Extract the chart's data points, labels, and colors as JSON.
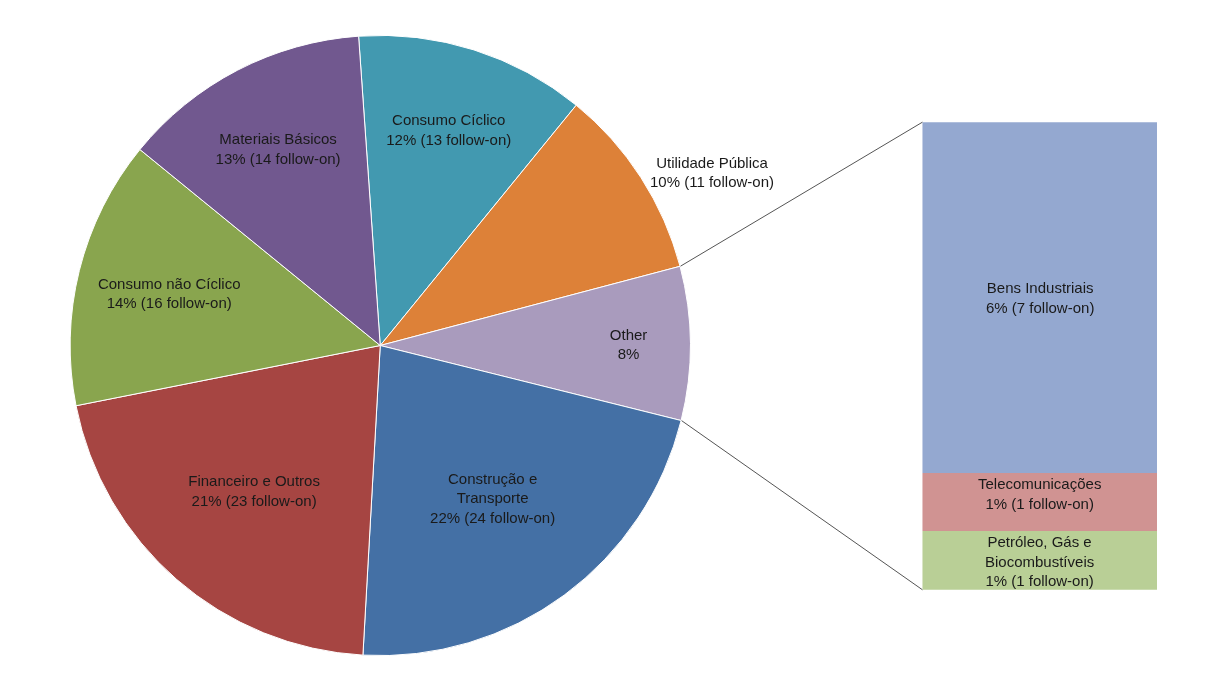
{
  "chart_data": [
    {
      "type": "pie",
      "categories": [
        "Consumo Cíclico",
        "Utilidade Pública",
        "Other",
        "Construção e Transporte",
        "Financeiro e Outros",
        "Consumo não Cíclico",
        "Materiais Básicos"
      ],
      "values": [
        12,
        10,
        8,
        22,
        21,
        14,
        13
      ],
      "colors": [
        "#4299b0",
        "#dd8138",
        "#a99bbd",
        "#4470a5",
        "#a64542",
        "#89a54e",
        "#71588f"
      ],
      "value_labels": [
        "12% (13 follow-on)",
        "10% (11 follow-on)",
        "8%",
        "22% (24 follow-on)",
        "21% (23 follow-on)",
        "14% (16 follow-on)",
        "13% (14 follow-on)"
      ]
    },
    {
      "type": "bar",
      "stacked": true,
      "categories": [
        null
      ],
      "tick_labels": false,
      "series": [
        {
          "name": "Petróleo, Gás e Biocombustíveis",
          "color": "#b9cf96",
          "values": [
            1
          ],
          "value_labels": [
            "1% (1 follow-on)"
          ]
        },
        {
          "name": "Telecomunicações",
          "color": "#d09392",
          "values": [
            1
          ],
          "value_labels": [
            "1% (1 follow-on)"
          ]
        },
        {
          "name": "Bens Industriais",
          "color": "#94a8d0",
          "values": [
            6
          ],
          "value_labels": [
            "6% (7 follow-on)"
          ]
        }
      ]
    }
  ]
}
